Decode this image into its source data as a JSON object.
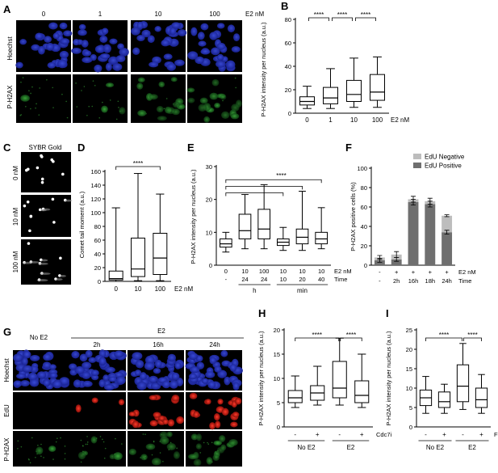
{
  "panels": {
    "A": {
      "letter": "A",
      "concentrations": [
        "0",
        "1",
        "10",
        "100"
      ],
      "unit": "E2 nM",
      "rows": [
        "Hoechst",
        "P-H2AX"
      ]
    },
    "C": {
      "letter": "C",
      "title": "SYBR Gold",
      "rows": [
        "0 nM",
        "10 nM",
        "100 nM"
      ]
    },
    "G": {
      "letter": "G",
      "no_e2": "No E2",
      "e2_group": "E2",
      "times": [
        "2h",
        "16h",
        "24h"
      ],
      "rows": [
        "Hoechst",
        "EdU",
        "P-H2AX"
      ]
    }
  },
  "chart_data": [
    {
      "id": "B",
      "letter": "B",
      "type": "box",
      "ylabel": "P-H2AX intensity per nucleus (a.u.)",
      "ylim": [
        0,
        80
      ],
      "yticks": [
        0,
        20,
        40,
        60,
        80
      ],
      "categories": [
        "0",
        "1",
        "10",
        "100"
      ],
      "xunit": "E2 nM",
      "boxes": [
        {
          "min": 4,
          "q1": 7,
          "median": 10,
          "q3": 14,
          "max": 23
        },
        {
          "min": 4,
          "q1": 8,
          "median": 13,
          "q3": 22,
          "max": 38
        },
        {
          "min": 5,
          "q1": 10,
          "median": 16,
          "q3": 28,
          "max": 47
        },
        {
          "min": 5,
          "q1": 11,
          "median": 18,
          "q3": 33,
          "max": 48
        }
      ],
      "sig": [
        {
          "from": 0,
          "to": 1,
          "text": "****"
        },
        {
          "from": 1,
          "to": 2,
          "text": "****"
        },
        {
          "from": 2,
          "to": 3,
          "text": "****"
        }
      ]
    },
    {
      "id": "D",
      "letter": "D",
      "type": "box",
      "ylabel": "Comet tail moment (a.u.)",
      "ylim": [
        0,
        160
      ],
      "yticks": [
        0,
        20,
        40,
        60,
        80,
        100,
        120,
        140,
        160
      ],
      "categories": [
        "0",
        "10",
        "100"
      ],
      "xunit": "E2 nM",
      "boxes": [
        {
          "min": 0,
          "q1": 2,
          "median": 4,
          "q3": 15,
          "max": 107
        },
        {
          "min": 1,
          "q1": 7,
          "median": 18,
          "q3": 63,
          "max": 157
        },
        {
          "min": 1,
          "q1": 10,
          "median": 34,
          "q3": 70,
          "max": 127
        }
      ],
      "sig": [
        {
          "from": 0,
          "to": 2,
          "text": "****"
        }
      ]
    },
    {
      "id": "E",
      "letter": "E",
      "type": "box",
      "ylabel": "P-H2AX intensity per nucleus (a.u.)",
      "ylim": [
        0,
        30
      ],
      "yticks": [
        0,
        10,
        20,
        30
      ],
      "rowlabels": [
        "E2 nM",
        "Time"
      ],
      "xrow1": [
        "0",
        "10",
        "100",
        "10",
        "10",
        "10"
      ],
      "xrow2": [
        "-",
        "24",
        "24",
        "10",
        "20",
        "40"
      ],
      "groups": [
        {
          "label": "h",
          "from": 1,
          "to": 2
        },
        {
          "label": "min",
          "from": 3,
          "to": 5
        }
      ],
      "boxes": [
        {
          "min": 4,
          "q1": 5.5,
          "median": 6.5,
          "q3": 8,
          "max": 10
        },
        {
          "min": 5,
          "q1": 8,
          "median": 10.5,
          "q3": 15.5,
          "max": 21.5
        },
        {
          "min": 5,
          "q1": 8,
          "median": 11,
          "q3": 17,
          "max": 24.5
        },
        {
          "min": 4.5,
          "q1": 6,
          "median": 7,
          "q3": 8,
          "max": 11.5
        },
        {
          "min": 4.5,
          "q1": 6.5,
          "median": 8.5,
          "q3": 11,
          "max": 22.5
        },
        {
          "min": 5,
          "q1": 6.5,
          "median": 8,
          "q3": 10,
          "max": 17.5
        }
      ],
      "brackets": [
        {
          "from": 0,
          "to": 5,
          "level": 26
        },
        {
          "from": 0,
          "to": 4,
          "level": 24
        },
        {
          "from": 0,
          "to": 3,
          "level": 22
        }
      ],
      "star": {
        "text": "****",
        "at": 2.9,
        "level": 26.6
      }
    },
    {
      "id": "F",
      "letter": "F",
      "type": "stacked-bar",
      "ylabel": "P-H2AX positive cells (%)",
      "ylim": [
        0,
        100
      ],
      "yticks": [
        0,
        20,
        40,
        60,
        80,
        100
      ],
      "rowlabels": [
        "E2 nM",
        "Time"
      ],
      "xrow1": [
        "-",
        "+",
        "+",
        "+",
        "+"
      ],
      "xrow2": [
        "-",
        "2h",
        "16h",
        "18h",
        "24h"
      ],
      "series": [
        {
          "name": "EdU Positive",
          "color": "#6f6f6f",
          "values": [
            5,
            6,
            65,
            63,
            34
          ],
          "err": [
            2,
            2,
            3,
            3,
            2
          ]
        },
        {
          "name": "EdU Negative",
          "color": "#bdbdbd",
          "values": [
            3,
            5,
            3,
            3,
            17
          ],
          "err": [
            2,
            3,
            3,
            3,
            1
          ]
        }
      ],
      "legend": "top-right"
    },
    {
      "id": "H",
      "letter": "H",
      "type": "box",
      "ylabel": "P-H2AX intensity per nucleus (a.u.)",
      "ylim": [
        0,
        20
      ],
      "yticks": [
        0,
        5,
        10,
        15,
        20
      ],
      "xrow1": [
        "-",
        "+",
        "-",
        "+"
      ],
      "xunit": "Cdc7i",
      "groups": [
        {
          "label": "No E2",
          "from": 0,
          "to": 1
        },
        {
          "label": "E2",
          "from": 2,
          "to": 3
        }
      ],
      "boxes": [
        {
          "min": 4,
          "q1": 5,
          "median": 6,
          "q3": 7.5,
          "max": 10.5
        },
        {
          "min": 4.5,
          "q1": 5.5,
          "median": 7,
          "q3": 8.5,
          "max": 12.5
        },
        {
          "min": 4.5,
          "q1": 6,
          "median": 8,
          "q3": 13.5,
          "max": 18.3
        },
        {
          "min": 4,
          "q1": 5,
          "median": 6.5,
          "q3": 9.5,
          "max": 15
        }
      ],
      "sig": [
        {
          "from": 0,
          "to": 2,
          "text": "****"
        },
        {
          "from": 2,
          "to": 3,
          "text": "****"
        }
      ]
    },
    {
      "id": "I",
      "letter": "I",
      "type": "box",
      "ylabel": "P-H2AX intensity per nucleus (a.u.)",
      "ylim": [
        0,
        25
      ],
      "yticks": [
        0,
        5,
        10,
        15,
        20,
        25
      ],
      "xrow1": [
        "-",
        "+",
        "-",
        "+"
      ],
      "xunit": "Flavo",
      "groups": [
        {
          "label": "No E2",
          "from": 0,
          "to": 1
        },
        {
          "label": "E2",
          "from": 2,
          "to": 3
        }
      ],
      "boxes": [
        {
          "min": 3.5,
          "q1": 5.5,
          "median": 7.5,
          "q3": 9.5,
          "max": 13
        },
        {
          "min": 3.5,
          "q1": 5,
          "median": 6.5,
          "q3": 9,
          "max": 11
        },
        {
          "min": 4.5,
          "q1": 6.5,
          "median": 10.5,
          "q3": 16,
          "max": 21.5
        },
        {
          "min": 3.5,
          "q1": 5,
          "median": 7,
          "q3": 10,
          "max": 13.5
        }
      ],
      "sig": [
        {
          "from": 0,
          "to": 2,
          "text": "****"
        },
        {
          "from": 2,
          "to": 3,
          "text": "****"
        }
      ]
    }
  ]
}
